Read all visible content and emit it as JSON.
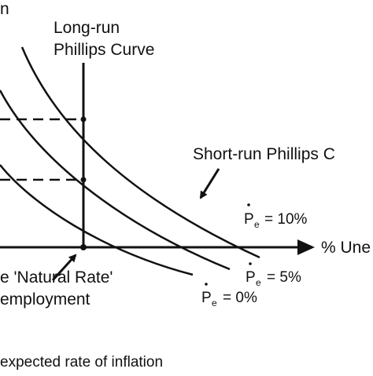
{
  "diagram": {
    "axis": {
      "x_label": "% Une",
      "y_label_fragment": "n"
    },
    "long_run": {
      "line1": "Long-run",
      "line2": "Phillips Curve"
    },
    "short_run": {
      "label": "Short-run Phillips C"
    },
    "curves": [
      {
        "pe_symbol": "P",
        "pe_sub": "e",
        "value": "= 10%"
      },
      {
        "pe_symbol": "P",
        "pe_sub": "e",
        "value": "= 5%"
      },
      {
        "pe_symbol": "P",
        "pe_sub": "e",
        "value": "= 0%"
      }
    ],
    "natural_rate": {
      "line1": "e 'Natural Rate'",
      "line2": "employment"
    },
    "footer": "expected rate of inflation"
  },
  "colors": {
    "ink": "#111111",
    "background": "#ffffff"
  }
}
